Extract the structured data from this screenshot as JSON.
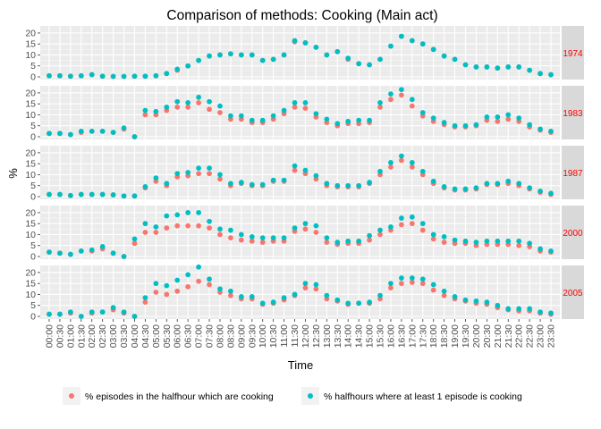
{
  "chart_data": {
    "type": "scatter",
    "title": "Comparison of methods: Cooking (Main act)",
    "xlabel": "Time",
    "ylabel": "%",
    "ylim": [
      0,
      22
    ],
    "yticks": [
      0,
      5,
      10,
      15,
      20
    ],
    "grid": true,
    "legend_position": "bottom",
    "facet_position": "right",
    "colors": {
      "episodes": "#F8766D",
      "halfhours": "#00BFC4",
      "panel_bg": "#EBEBEB",
      "strip_bg": "#D9D9D9",
      "strip_text": "#FF0000"
    },
    "x": [
      "00:00",
      "00:30",
      "01:00",
      "01:30",
      "02:00",
      "02:30",
      "03:00",
      "03:30",
      "04:00",
      "04:30",
      "05:00",
      "05:30",
      "06:00",
      "06:30",
      "07:00",
      "07:30",
      "08:00",
      "08:30",
      "09:00",
      "09:30",
      "10:00",
      "10:30",
      "11:00",
      "11:30",
      "12:00",
      "12:30",
      "13:00",
      "13:30",
      "14:00",
      "14:30",
      "15:00",
      "15:30",
      "16:00",
      "16:30",
      "17:00",
      "17:30",
      "18:00",
      "18:30",
      "19:00",
      "19:30",
      "20:00",
      "20:30",
      "21:00",
      "21:30",
      "22:00",
      "22:30",
      "23:00",
      "23:30"
    ],
    "series_names": [
      "% episodes in the halfhour which are cooking",
      "% halfhours where at least 1 episode is cooking"
    ],
    "facets": [
      {
        "label": "1974",
        "series": [
          {
            "name": "% episodes in the halfhour which are cooking",
            "values": [
              0.5,
              0.5,
              0.3,
              0.5,
              1,
              0.3,
              0.2,
              0.2,
              0.3,
              0.3,
              0.5,
              1.5,
              3,
              5,
              7.5,
              9.5,
              10,
              10.5,
              10,
              10,
              7.5,
              8,
              10,
              16,
              15.5,
              13.5,
              10,
              11.5,
              8,
              6,
              5.5,
              8,
              14,
              18.5,
              16.5,
              15,
              12.5,
              9.5,
              8,
              5.5,
              4.5,
              4.5,
              4,
              4.5,
              4.5,
              3,
              1.5,
              1
            ]
          },
          {
            "name": "% halfhours where at least 1 episode is cooking",
            "values": [
              0.5,
              0.5,
              0.3,
              0.5,
              1,
              0.3,
              0.2,
              0.2,
              0.3,
              0.3,
              0.5,
              1.5,
              3.5,
              5,
              7.5,
              9.5,
              10,
              10.5,
              10,
              10,
              7.5,
              8,
              10,
              16.5,
              15.5,
              13.5,
              10,
              11.5,
              8.5,
              6,
              5.5,
              8,
              14,
              18.5,
              16.5,
              15,
              12.5,
              9.5,
              8,
              5.5,
              4.5,
              4.5,
              4,
              4.5,
              4.5,
              3,
              1.5,
              1
            ]
          }
        ]
      },
      {
        "label": "1983",
        "series": [
          {
            "name": "% episodes in the halfhour which are cooking",
            "values": [
              1.5,
              1.5,
              1,
              2,
              2.5,
              2.5,
              2,
              3.5,
              0,
              10,
              10,
              12,
              13.5,
              13.5,
              15.5,
              12.5,
              11,
              8,
              8,
              6.5,
              6.5,
              8,
              10.5,
              13.5,
              13,
              9,
              6.5,
              5,
              6,
              6,
              6.5,
              13.5,
              17,
              19,
              14,
              9.5,
              7,
              5.5,
              4.5,
              4.5,
              5,
              7.5,
              7,
              8,
              7,
              4.5,
              3,
              2
            ]
          },
          {
            "name": "% halfhours where at least 1 episode is cooking",
            "values": [
              1.5,
              1.5,
              1,
              2.5,
              2.5,
              2.5,
              2,
              4,
              0,
              12,
              11.5,
              13.5,
              16,
              15.5,
              18,
              16,
              14,
              9.5,
              9.5,
              7.5,
              7.5,
              9.5,
              12,
              15.5,
              15.5,
              10.5,
              8,
              6,
              7,
              7.5,
              7.5,
              15.5,
              19.5,
              21.5,
              17,
              11,
              8.5,
              6.5,
              5,
              5,
              5.5,
              9,
              9,
              10,
              8.5,
              5.5,
              3.5,
              2.5
            ]
          }
        ]
      },
      {
        "label": "1987",
        "series": [
          {
            "name": "% episodes in the halfhour which are cooking",
            "values": [
              1,
              1,
              0.5,
              1,
              1,
              1,
              0.8,
              0.3,
              0.3,
              4,
              7,
              5,
              9,
              9.5,
              10.5,
              10.5,
              8,
              5,
              6,
              5,
              5,
              7,
              7,
              12,
              10.5,
              8,
              5,
              4.5,
              4.5,
              4.5,
              6,
              10,
              13.5,
              16.5,
              13.5,
              10,
              6,
              4,
              3,
              3,
              3.5,
              5.5,
              5.5,
              6,
              5,
              3.5,
              2,
              1
            ]
          },
          {
            "name": "% halfhours where at least 1 episode is cooking",
            "values": [
              1,
              1,
              0.5,
              1,
              1,
              1,
              0.8,
              0.3,
              0.3,
              4.5,
              8.5,
              6,
              10.5,
              11,
              13,
              13,
              10,
              6,
              6.5,
              5.5,
              5.5,
              7.5,
              7.5,
              14,
              12,
              9.5,
              6,
              5,
              5,
              5,
              6.5,
              11.5,
              15.5,
              18.5,
              15.5,
              11.5,
              7,
              4.5,
              3.5,
              3.5,
              4,
              6,
              6,
              7,
              6,
              4,
              2.5,
              1.5
            ]
          }
        ]
      },
      {
        "label": "2000",
        "series": [
          {
            "name": "% episodes in the halfhour which are cooking",
            "values": [
              2,
              1.5,
              1,
              2.5,
              2.5,
              3.5,
              1.5,
              0,
              6,
              11,
              11,
              13,
              14,
              14,
              14,
              13,
              10,
              8.5,
              7.5,
              7,
              6.5,
              7,
              7,
              11.5,
              12.5,
              11,
              6.5,
              5.5,
              6,
              6,
              7.5,
              10,
              12,
              14.5,
              15,
              12,
              8,
              6.5,
              6,
              6,
              5,
              5.5,
              5.5,
              5.5,
              5,
              4.5,
              2.5,
              2
            ]
          },
          {
            "name": "% halfhours where at least 1 episode is cooking",
            "values": [
              2,
              1.5,
              1,
              2.5,
              3,
              4.5,
              1.5,
              0,
              8,
              15,
              13.5,
              18.5,
              19,
              20,
              20,
              16,
              12.5,
              12,
              10,
              9,
              8.5,
              8.5,
              8.5,
              13,
              15,
              14,
              8.5,
              6.5,
              7,
              7,
              9.5,
              12,
              13.5,
              17.5,
              18,
              15,
              10,
              9,
              7.5,
              7,
              6.5,
              7,
              7,
              7,
              7,
              6,
              3.5,
              2.5
            ]
          }
        ]
      },
      {
        "label": "2005",
        "series": [
          {
            "name": "% episodes in the halfhour which are cooking",
            "values": [
              1,
              1,
              1.5,
              0,
              1.5,
              2,
              3,
              1.5,
              0,
              6.5,
              11,
              10,
              11.5,
              13.5,
              16,
              14.5,
              11,
              9.5,
              8,
              8,
              5.5,
              6,
              7.5,
              9.5,
              13,
              12.5,
              8,
              7,
              5.5,
              6,
              6,
              8,
              13,
              15,
              15.5,
              15,
              12,
              9.5,
              8,
              7,
              6,
              5.5,
              4,
              3,
              2.5,
              2.5,
              1.5,
              1
            ]
          },
          {
            "name": "% halfhours where at least 1 episode is cooking",
            "values": [
              1,
              1,
              2,
              0,
              2,
              2,
              4,
              2,
              0,
              8.5,
              15,
              14,
              16.5,
              19,
              22.5,
              17,
              12.5,
              11.5,
              9,
              9,
              6,
              6.5,
              8.5,
              10,
              15,
              14.5,
              9.5,
              7.5,
              6,
              6,
              6.5,
              9.5,
              15,
              17.5,
              17.5,
              17,
              14.5,
              11.5,
              9,
              7.5,
              7,
              6.5,
              5,
              3.5,
              3.5,
              3.5,
              2,
              1.5
            ]
          }
        ]
      }
    ]
  }
}
